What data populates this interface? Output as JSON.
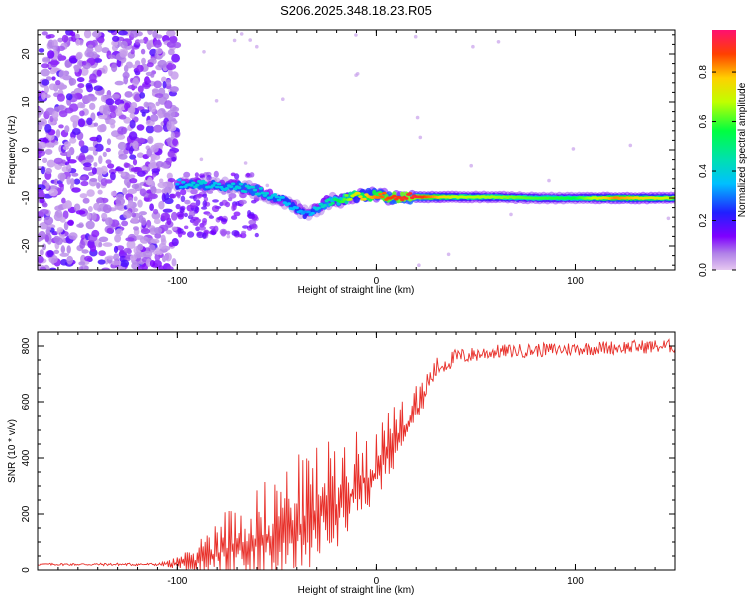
{
  "title": "S206.2025.348.18.23.R05",
  "chart_data": [
    {
      "type": "heatmap",
      "id": "spectrogram",
      "xlabel": "Height of straight line (km)",
      "ylabel": "Frequency (Hz)",
      "xlim": [
        -170,
        150
      ],
      "ylim": [
        -25,
        25
      ],
      "xticks": [
        -100,
        0,
        100
      ],
      "yticks": [
        -20,
        -10,
        0,
        10,
        20
      ],
      "colorbar": {
        "label": "Normalized spectral amplitude",
        "range": [
          0,
          0.97
        ],
        "ticks": [
          0.0,
          0.2,
          0.4,
          0.6,
          0.8
        ]
      },
      "ridge": {
        "x": [
          -100,
          -90,
          -80,
          -70,
          -60,
          -50,
          -40,
          -35,
          -30,
          -25,
          -20,
          -10,
          0,
          10,
          20,
          40,
          60,
          80,
          100,
          120,
          150
        ],
        "frequency": [
          -7,
          -7,
          -7.5,
          -7.5,
          -8.5,
          -10,
          -12,
          -13.5,
          -12,
          -11,
          -10.5,
          -9.5,
          -9.5,
          -9.8,
          -9.8,
          -9.8,
          -9.8,
          -10,
          -10,
          -10,
          -10
        ],
        "amplitude": [
          0.35,
          0.42,
          0.38,
          0.4,
          0.42,
          0.38,
          0.36,
          0.32,
          0.4,
          0.45,
          0.55,
          0.75,
          0.85,
          0.92,
          0.95,
          0.7,
          0.68,
          0.62,
          0.58,
          0.85,
          0.7
        ]
      }
    },
    {
      "type": "line",
      "id": "snr",
      "xlabel": "Height of straight line (km)",
      "ylabel": "SNR (10 * v/v)",
      "xlim": [
        -170,
        150
      ],
      "ylim": [
        0,
        850
      ],
      "xticks": [
        -100,
        0,
        100
      ],
      "yticks": [
        0,
        200,
        400,
        600,
        800
      ],
      "color": "#e8302a",
      "envelope": {
        "x": [
          -170,
          -110,
          -100,
          -95,
          -90,
          -85,
          -80,
          -70,
          -60,
          -50,
          -40,
          -30,
          -20,
          -10,
          0,
          10,
          20,
          25,
          30,
          40,
          60,
          80,
          100,
          120,
          150
        ],
        "baseline": [
          20,
          20,
          22,
          25,
          35,
          45,
          60,
          80,
          100,
          120,
          150,
          180,
          230,
          290,
          350,
          440,
          560,
          650,
          720,
          760,
          780,
          785,
          790,
          795,
          800
        ],
        "spread": [
          8,
          10,
          30,
          40,
          70,
          110,
          140,
          170,
          200,
          230,
          260,
          270,
          250,
          210,
          170,
          150,
          110,
          70,
          40,
          30,
          25,
          25,
          25,
          25,
          25
        ]
      }
    }
  ]
}
